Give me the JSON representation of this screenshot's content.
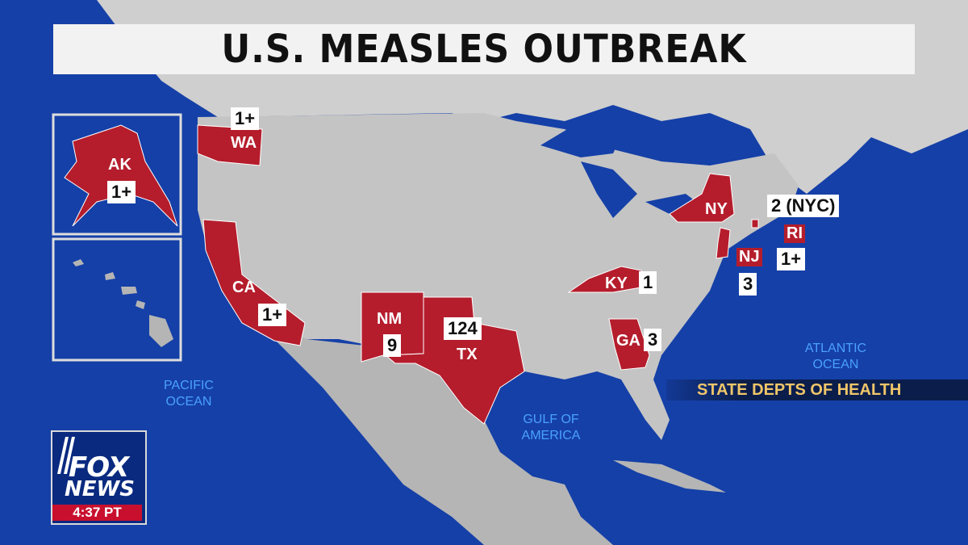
{
  "title": "U.S. MEASLES OUTBREAK",
  "source": "STATE DEPTS OF HEALTH",
  "time": "4:37 PT",
  "logo": {
    "line1": "FOX",
    "line2": "NEWS"
  },
  "oceans": {
    "pacific": "PACIFIC OCEAN",
    "atlantic": "ATLANTIC OCEAN",
    "gulf": "GULF OF AMERICA"
  },
  "states": [
    {
      "abbr": "AK",
      "count": "1+"
    },
    {
      "abbr": "WA",
      "count": "1+"
    },
    {
      "abbr": "CA",
      "count": "1+"
    },
    {
      "abbr": "NM",
      "count": "9"
    },
    {
      "abbr": "TX",
      "count": "124"
    },
    {
      "abbr": "KY",
      "count": "1"
    },
    {
      "abbr": "GA",
      "count": "3"
    },
    {
      "abbr": "NY",
      "count": "2 (NYC)"
    },
    {
      "abbr": "NJ",
      "count": "3"
    },
    {
      "abbr": "RI",
      "count": "1+"
    }
  ],
  "colors": {
    "ocean": "#1540a8",
    "land": "#bdbdbd",
    "affected": "#b51d2c",
    "border": "#ffffff"
  }
}
